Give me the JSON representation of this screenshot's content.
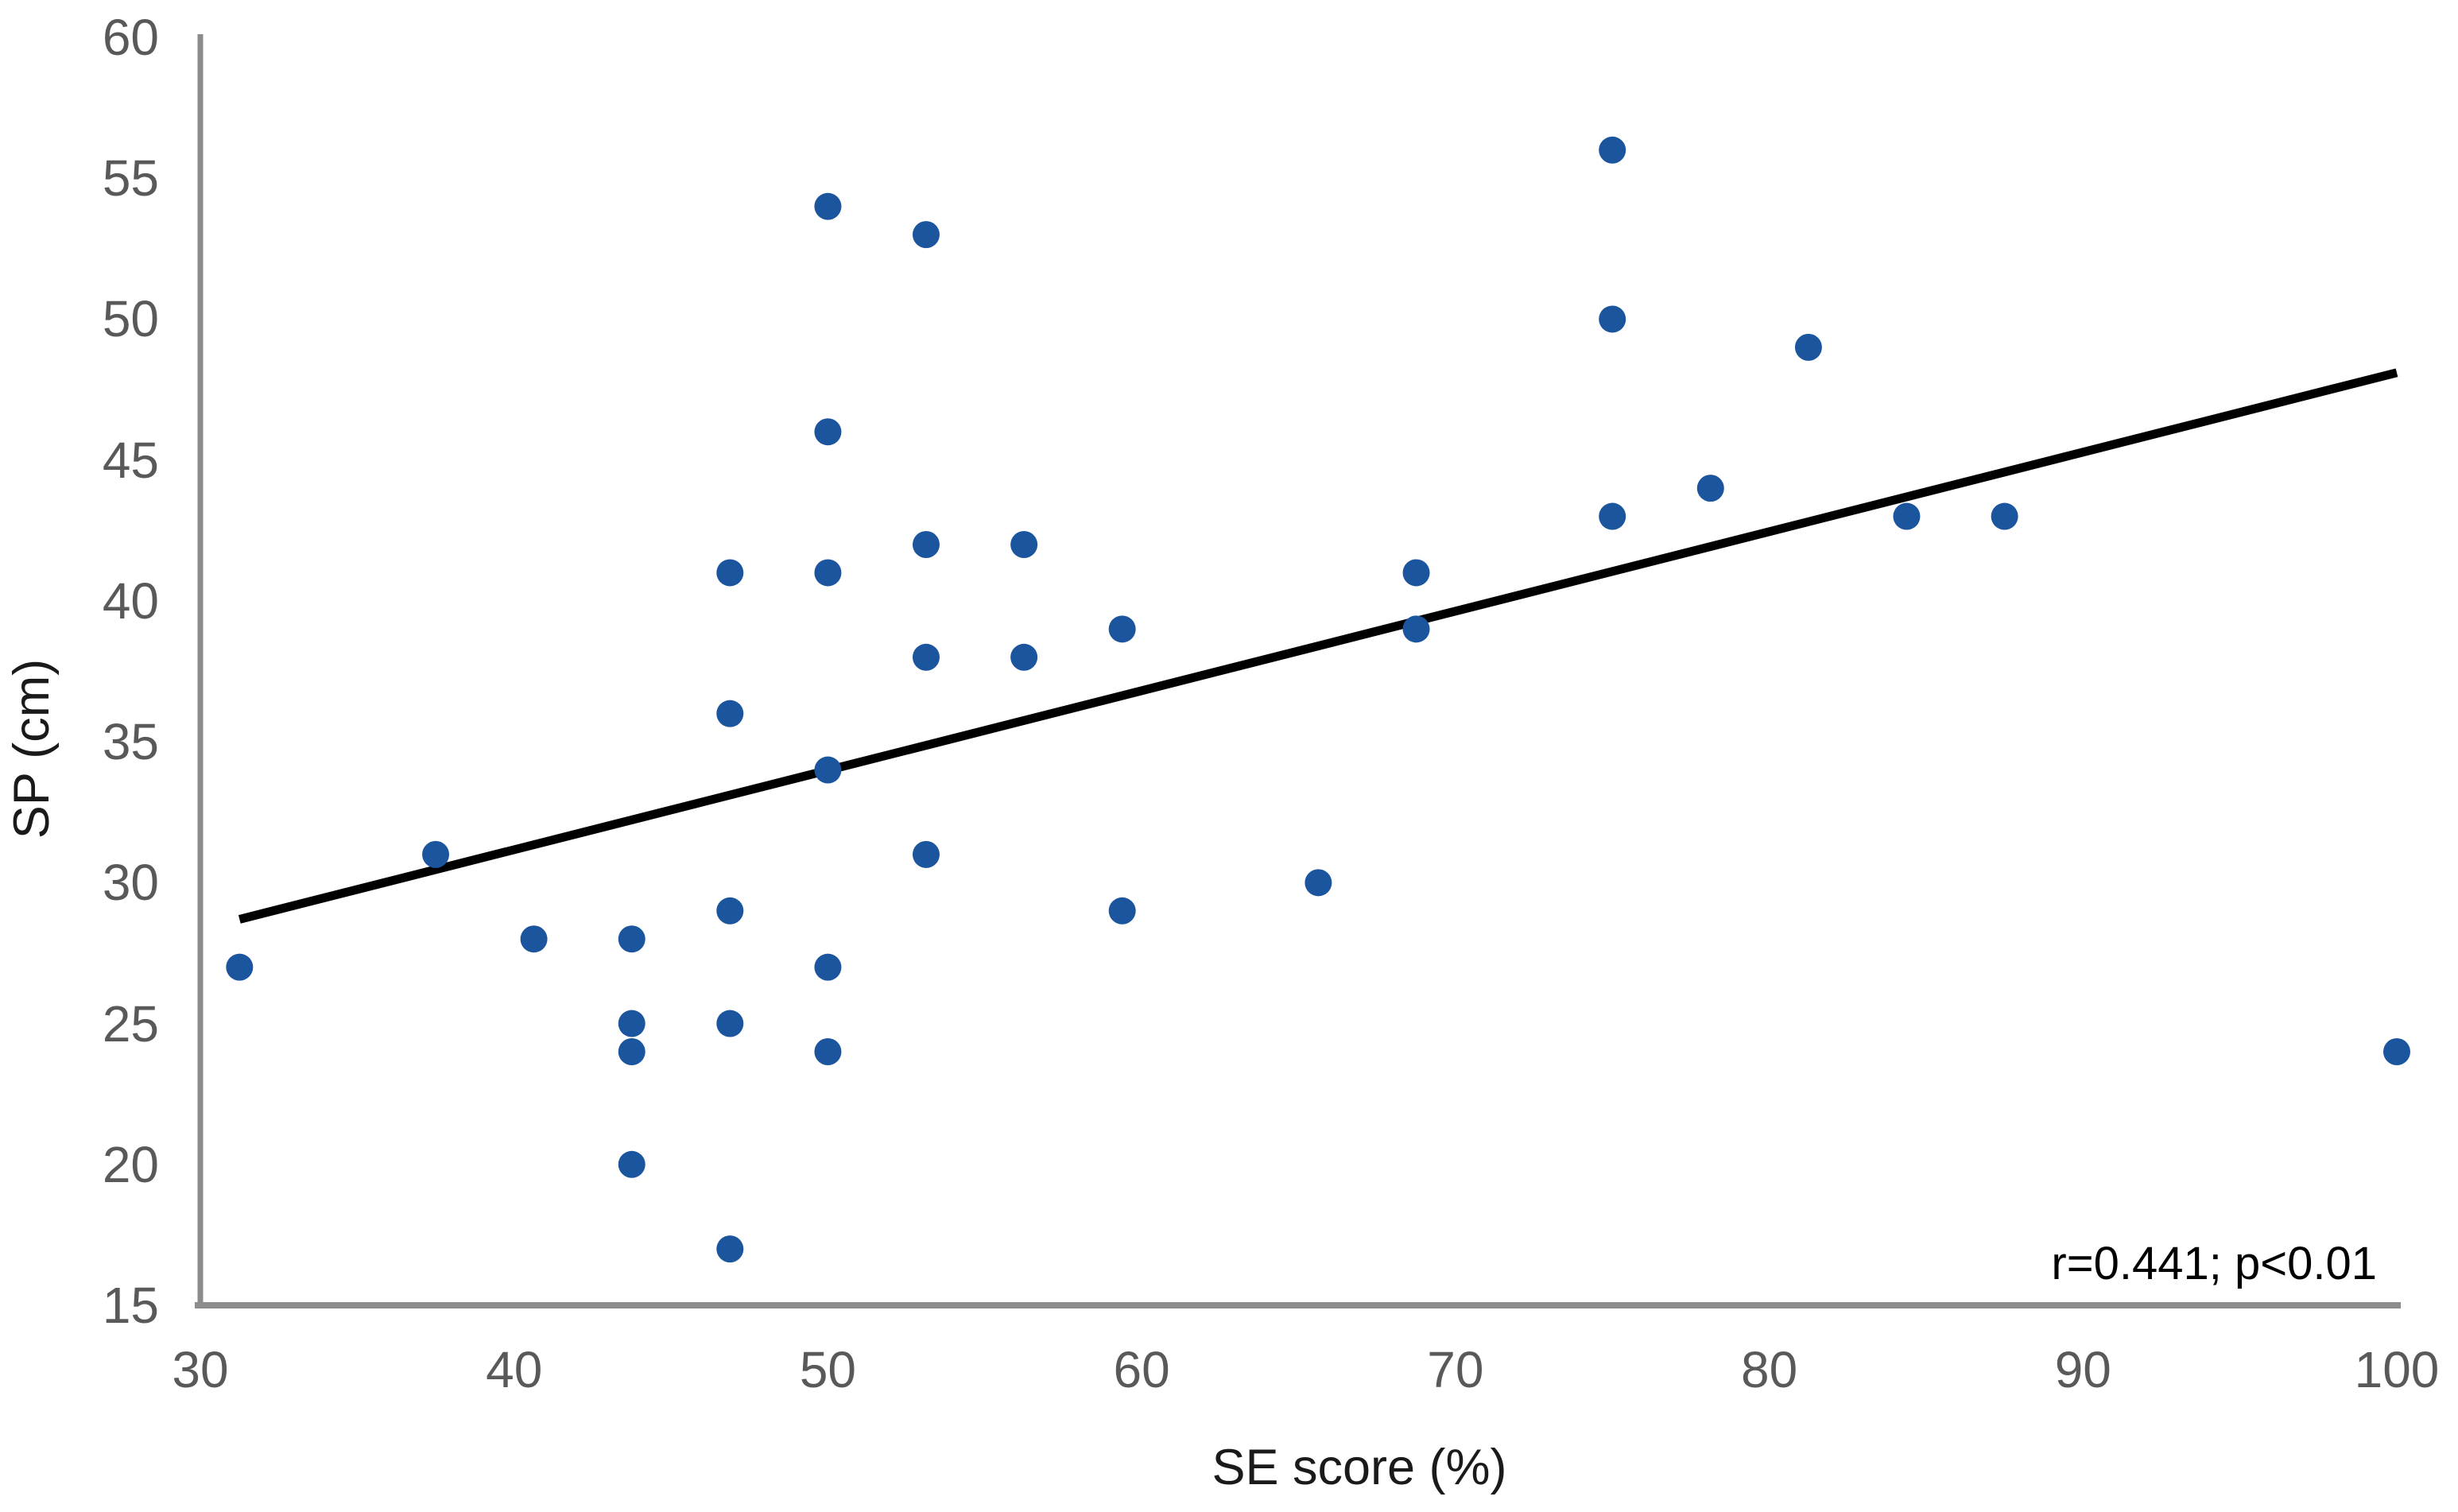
{
  "chart_data": {
    "type": "scatter",
    "title": "",
    "xlabel": "SE score (%)",
    "ylabel": "SP (cm)",
    "annotation": "r=0.441; p<0.01",
    "xlim": [
      30,
      100
    ],
    "ylim": [
      15,
      60
    ],
    "x_ticks": [
      30,
      40,
      50,
      60,
      70,
      80,
      90,
      100
    ],
    "y_ticks": [
      15,
      20,
      25,
      30,
      35,
      40,
      45,
      50,
      55,
      60
    ],
    "grid": false,
    "legend": "none",
    "series": [
      {
        "name": "observations",
        "points": [
          [
            31.25,
            27
          ],
          [
            37.5,
            31
          ],
          [
            40.63,
            28
          ],
          [
            43.75,
            28
          ],
          [
            43.75,
            25
          ],
          [
            43.75,
            24
          ],
          [
            43.75,
            20
          ],
          [
            46.88,
            41
          ],
          [
            46.88,
            36
          ],
          [
            46.88,
            29
          ],
          [
            46.88,
            25
          ],
          [
            46.88,
            17
          ],
          [
            50,
            54
          ],
          [
            50,
            46
          ],
          [
            50,
            41
          ],
          [
            50,
            34
          ],
          [
            50,
            27
          ],
          [
            50,
            24
          ],
          [
            53.13,
            53
          ],
          [
            53.13,
            42
          ],
          [
            53.13,
            38
          ],
          [
            53.13,
            31
          ],
          [
            56.25,
            42
          ],
          [
            56.25,
            38
          ],
          [
            59.38,
            39
          ],
          [
            59.38,
            29
          ],
          [
            65.63,
            30
          ],
          [
            68.75,
            41
          ],
          [
            68.75,
            39
          ],
          [
            75,
            56
          ],
          [
            75,
            50
          ],
          [
            75,
            43
          ],
          [
            78.13,
            44
          ],
          [
            81.25,
            49
          ],
          [
            84.38,
            43
          ],
          [
            87.5,
            43
          ],
          [
            100,
            24
          ]
        ]
      }
    ],
    "trendline": {
      "x1": 31.25,
      "y1": 28.7,
      "x2": 100,
      "y2": 48.1
    },
    "colors": {
      "point": "#1b559e",
      "trend": "#000000",
      "axis": "#8c8c8c",
      "tick_label": "#595959",
      "text": "#1a1a1a"
    }
  }
}
